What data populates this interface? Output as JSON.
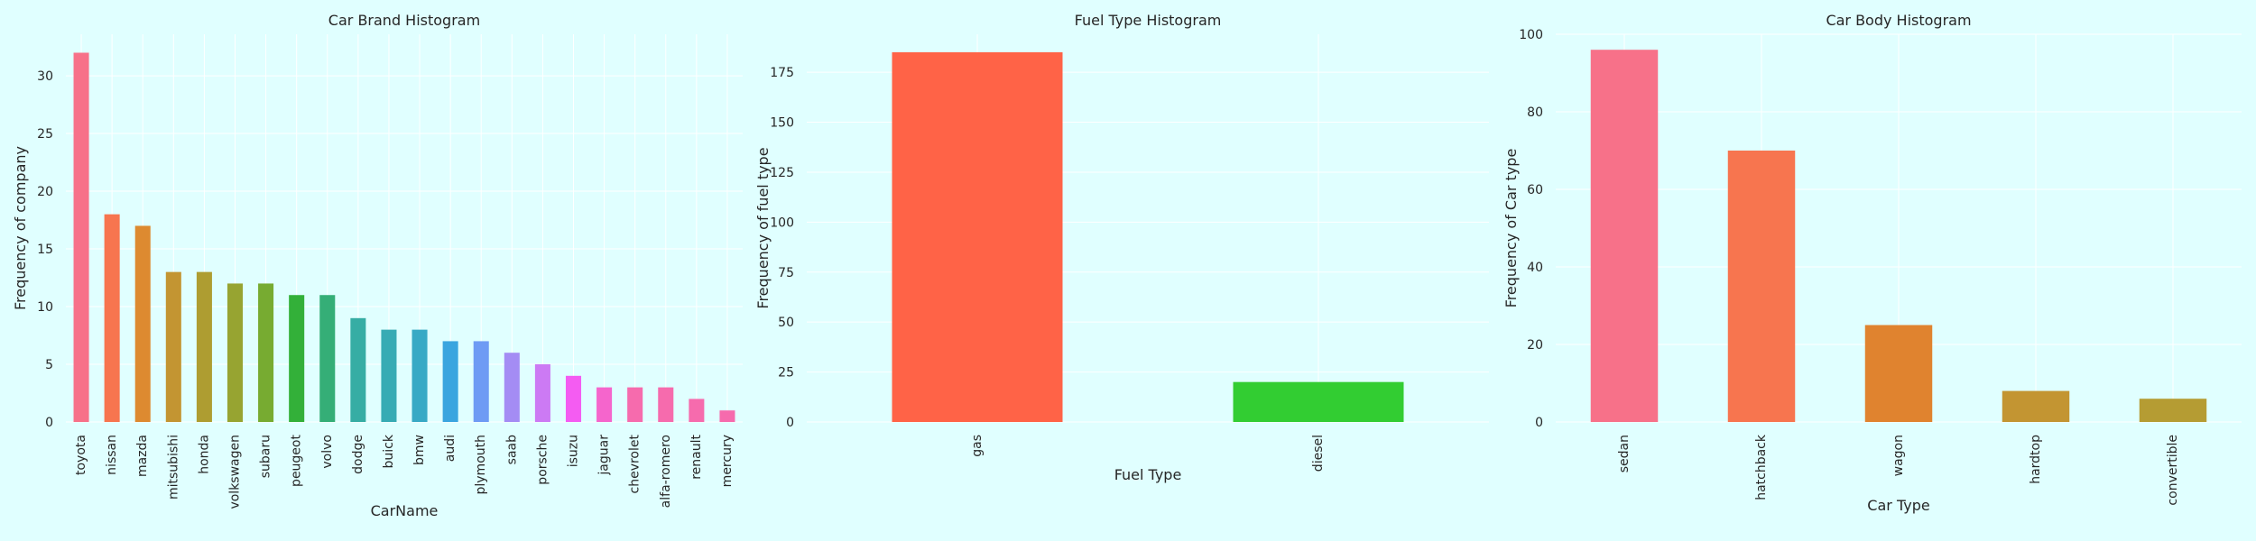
{
  "chart_data": [
    {
      "type": "bar",
      "title": "Car Brand Histogram",
      "xlabel": "CarName",
      "ylabel": "Frequency of company",
      "ylim": [
        0,
        33.6
      ],
      "yticks": [
        0,
        5,
        10,
        15,
        20,
        25,
        30
      ],
      "grid": true,
      "categories": [
        "toyota",
        "nissan",
        "mazda",
        "mitsubishi",
        "honda",
        "volkswagen",
        "subaru",
        "peugeot",
        "volvo",
        "dodge",
        "buick",
        "bmw",
        "audi",
        "plymouth",
        "saab",
        "porsche",
        "isuzu",
        "jaguar",
        "chevrolet",
        "alfa-romero",
        "renault",
        "mercury"
      ],
      "values": [
        32,
        18,
        17,
        13,
        13,
        12,
        12,
        11,
        11,
        9,
        8,
        8,
        7,
        7,
        6,
        5,
        4,
        3,
        3,
        3,
        2,
        1
      ],
      "colors": [
        "#f77189",
        "#f7754f",
        "#dd8a30",
        "#c39532",
        "#ae9d31",
        "#97a431",
        "#77ab31",
        "#33b039",
        "#35ae77",
        "#36ada4",
        "#37abb4",
        "#38a9c5",
        "#3aa5df",
        "#6e9bf4",
        "#a48cf4",
        "#cc7af4",
        "#f45cf2",
        "#f565cc",
        "#f66bad",
        "#f66bad",
        "#f66bad",
        "#f66bad"
      ]
    },
    {
      "type": "bar",
      "title": "Fuel Type Histogram",
      "xlabel": "Fuel Type",
      "ylabel": "Frequency of fuel type",
      "ylim": [
        0,
        194
      ],
      "yticks": [
        0,
        25,
        50,
        75,
        100,
        125,
        150,
        175
      ],
      "grid": true,
      "categories": [
        "gas",
        "diesel"
      ],
      "values": [
        185,
        20
      ],
      "colors": [
        "#ff6347",
        "#32cd32"
      ]
    },
    {
      "type": "bar",
      "title": "Car Body Histogram",
      "xlabel": "Car Type",
      "ylabel": "Frequency of Car type",
      "ylim": [
        0,
        100
      ],
      "yticks": [
        0,
        20,
        40,
        60,
        80,
        100
      ],
      "grid": true,
      "categories": [
        "sedan",
        "hatchback",
        "wagon",
        "hardtop",
        "convertible"
      ],
      "values": [
        96,
        70,
        25,
        8,
        6
      ],
      "colors": [
        "#f77189",
        "#f7754f",
        "#e0832f",
        "#c39532",
        "#b59c33"
      ]
    }
  ]
}
